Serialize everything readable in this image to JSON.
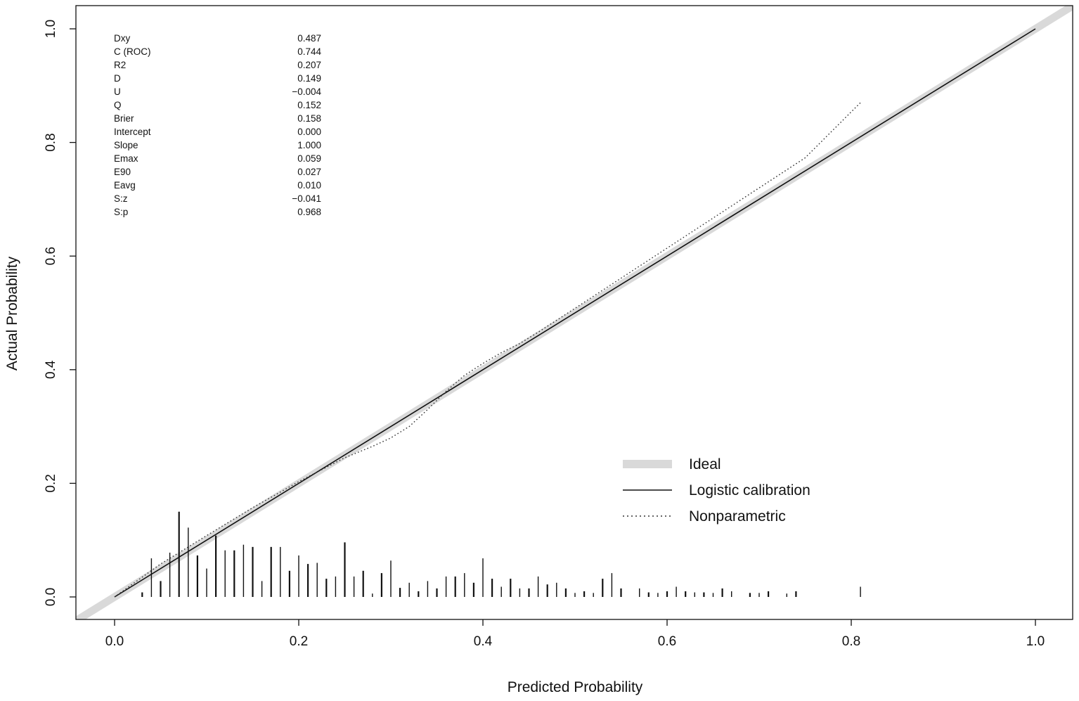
{
  "chart_data": {
    "type": "line",
    "title": "",
    "xlabel": "Predicted Probability",
    "ylabel": "Actual Probability",
    "xlim": [
      -0.05,
      1.05
    ],
    "ylim": [
      -0.04,
      1.04
    ],
    "xticks": [
      0.0,
      0.2,
      0.4,
      0.6,
      0.8,
      1.0
    ],
    "yticks": [
      0.0,
      0.2,
      0.4,
      0.6,
      0.8,
      1.0
    ],
    "xtick_labels": [
      "0.0",
      "0.2",
      "0.4",
      "0.6",
      "0.8",
      "1.0"
    ],
    "ytick_labels": [
      "0.0",
      "0.2",
      "0.4",
      "0.6",
      "0.8",
      "1.0"
    ],
    "grid": false,
    "legend_position": "bottom-right",
    "stats": [
      {
        "label": "Dxy",
        "value": "0.487"
      },
      {
        "label": "C (ROC)",
        "value": "0.744"
      },
      {
        "label": "R2",
        "value": "0.207"
      },
      {
        "label": "D",
        "value": "0.149"
      },
      {
        "label": "U",
        "value": "−0.004"
      },
      {
        "label": "Q",
        "value": "0.152"
      },
      {
        "label": "Brier",
        "value": "0.158"
      },
      {
        "label": "Intercept",
        "value": "0.000"
      },
      {
        "label": "Slope",
        "value": "1.000"
      },
      {
        "label": "Emax",
        "value": "0.059"
      },
      {
        "label": "E90",
        "value": "0.027"
      },
      {
        "label": "Eavg",
        "value": "0.010"
      },
      {
        "label": "S:z",
        "value": "−0.041"
      },
      {
        "label": "S:p",
        "value": "0.968"
      }
    ],
    "series": [
      {
        "name": "Ideal",
        "style": "thick-gray",
        "color": "#d9d9d9",
        "x": [
          -0.05,
          1.05
        ],
        "y": [
          -0.05,
          1.05
        ]
      },
      {
        "name": "Logistic calibration",
        "style": "solid",
        "color": "#111111",
        "x": [
          0.0,
          1.0
        ],
        "y": [
          0.0,
          1.0
        ]
      },
      {
        "name": "Nonparametric",
        "style": "dotted",
        "color": "#333333",
        "x": [
          0.0,
          0.05,
          0.1,
          0.15,
          0.2,
          0.25,
          0.28,
          0.3,
          0.32,
          0.34,
          0.36,
          0.38,
          0.4,
          0.42,
          0.44,
          0.46,
          0.5,
          0.55,
          0.6,
          0.65,
          0.7,
          0.75,
          0.81
        ],
        "y": [
          0.0,
          0.058,
          0.108,
          0.157,
          0.203,
          0.245,
          0.265,
          0.28,
          0.3,
          0.33,
          0.362,
          0.39,
          0.411,
          0.43,
          0.446,
          0.466,
          0.508,
          0.561,
          0.614,
          0.667,
          0.72,
          0.773,
          0.87
        ]
      }
    ],
    "rug": {
      "color": "#111111",
      "x": [
        0.03,
        0.04,
        0.05,
        0.06,
        0.07,
        0.08,
        0.09,
        0.1,
        0.11,
        0.12,
        0.13,
        0.14,
        0.15,
        0.16,
        0.17,
        0.18,
        0.19,
        0.2,
        0.21,
        0.22,
        0.23,
        0.24,
        0.25,
        0.26,
        0.27,
        0.28,
        0.29,
        0.3,
        0.31,
        0.32,
        0.33,
        0.34,
        0.35,
        0.36,
        0.37,
        0.38,
        0.39,
        0.4,
        0.41,
        0.42,
        0.43,
        0.44,
        0.45,
        0.46,
        0.47,
        0.48,
        0.49,
        0.5,
        0.51,
        0.52,
        0.53,
        0.54,
        0.55,
        0.57,
        0.58,
        0.59,
        0.6,
        0.61,
        0.62,
        0.63,
        0.64,
        0.65,
        0.66,
        0.67,
        0.69,
        0.7,
        0.71,
        0.73,
        0.74,
        0.81
      ],
      "heights": [
        0.008,
        0.068,
        0.028,
        0.078,
        0.15,
        0.122,
        0.073,
        0.05,
        0.108,
        0.082,
        0.082,
        0.092,
        0.088,
        0.028,
        0.088,
        0.088,
        0.046,
        0.073,
        0.058,
        0.06,
        0.032,
        0.036,
        0.096,
        0.036,
        0.046,
        0.006,
        0.042,
        0.064,
        0.016,
        0.025,
        0.01,
        0.028,
        0.015,
        0.036,
        0.036,
        0.042,
        0.025,
        0.068,
        0.032,
        0.018,
        0.032,
        0.015,
        0.015,
        0.036,
        0.022,
        0.025,
        0.015,
        0.007,
        0.01,
        0.007,
        0.032,
        0.042,
        0.015,
        0.015,
        0.008,
        0.007,
        0.01,
        0.018,
        0.01,
        0.008,
        0.008,
        0.007,
        0.015,
        0.01,
        0.007,
        0.007,
        0.01,
        0.006,
        0.01,
        0.018
      ]
    }
  },
  "legend": {
    "items": [
      {
        "label": "Ideal",
        "style": "thick-gray"
      },
      {
        "label": "Logistic calibration",
        "style": "solid"
      },
      {
        "label": "Nonparametric",
        "style": "dotted"
      }
    ]
  },
  "colors": {
    "axis": "#111111",
    "ideal": "#d9d9d9",
    "text": "#111111"
  }
}
